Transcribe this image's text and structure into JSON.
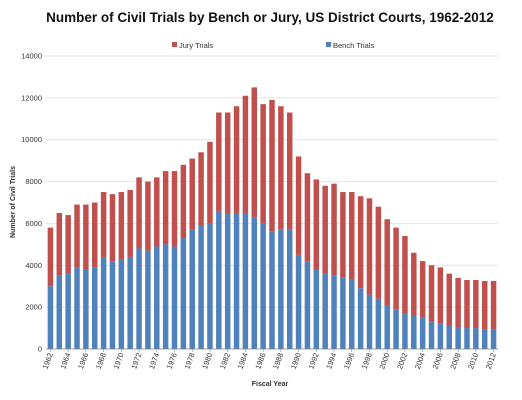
{
  "chart_data": {
    "type": "bar",
    "stacked": true,
    "title": "Number of Civil Trials by Bench or Jury, US District Courts, 1962-2012",
    "xlabel": "Fiscal Year",
    "ylabel": "Number of Civil Trials",
    "ylim": [
      0,
      14000
    ],
    "yticks": [
      0,
      2000,
      4000,
      6000,
      8000,
      10000,
      12000,
      14000
    ],
    "grid": true,
    "legend_position": "top",
    "categories": [
      "1962",
      "1963",
      "1964",
      "1965",
      "1966",
      "1967",
      "1968",
      "1969",
      "1970",
      "1971",
      "1972",
      "1973",
      "1974",
      "1975",
      "1976",
      "1977",
      "1978",
      "1979",
      "1980",
      "1981",
      "1982",
      "1983",
      "1984",
      "1985",
      "1986",
      "1987",
      "1988",
      "1989",
      "1990",
      "1991",
      "1992",
      "1993",
      "1994",
      "1995",
      "1996",
      "1997",
      "1998",
      "1999",
      "2000",
      "2001",
      "2002",
      "2003",
      "2004",
      "2005",
      "2006",
      "2007",
      "2008",
      "2009",
      "2010",
      "2011",
      "2012"
    ],
    "xtick_labels": [
      "1962",
      "1964",
      "1966",
      "1968",
      "1970",
      "1972",
      "1974",
      "1976",
      "1978",
      "1980",
      "1982",
      "1984",
      "1986",
      "1988",
      "1990",
      "1992",
      "1994",
      "1996",
      "1998",
      "2000",
      "2002",
      "2004",
      "2006",
      "2008",
      "2010",
      "2012"
    ],
    "series": [
      {
        "name": "Bench Trials",
        "color": "#4f81bd",
        "values": [
          3000,
          3500,
          3600,
          3900,
          3800,
          3900,
          4400,
          4200,
          4300,
          4400,
          4800,
          4700,
          4900,
          5000,
          4900,
          5300,
          5700,
          5900,
          6000,
          6600,
          6500,
          6500,
          6500,
          6300,
          6000,
          5600,
          5700,
          5700,
          4500,
          4200,
          3800,
          3600,
          3500,
          3400,
          3300,
          2900,
          2600,
          2400,
          2100,
          1900,
          1700,
          1600,
          1500,
          1300,
          1200,
          1100,
          1050,
          1000,
          1000,
          950,
          950
        ]
      },
      {
        "name": "Jury Trials",
        "color": "#c0504d",
        "values": [
          2800,
          3000,
          2800,
          3000,
          3100,
          3100,
          3100,
          3200,
          3200,
          3200,
          3400,
          3300,
          3300,
          3500,
          3600,
          3500,
          3400,
          3500,
          3900,
          4700,
          4800,
          5100,
          5600,
          6200,
          5700,
          6300,
          5900,
          5600,
          4700,
          4200,
          4300,
          4200,
          4400,
          4100,
          4200,
          4400,
          4600,
          4400,
          4100,
          3900,
          3700,
          3000,
          2700,
          2700,
          2700,
          2500,
          2350,
          2300,
          2300,
          2300,
          2300
        ]
      }
    ]
  }
}
